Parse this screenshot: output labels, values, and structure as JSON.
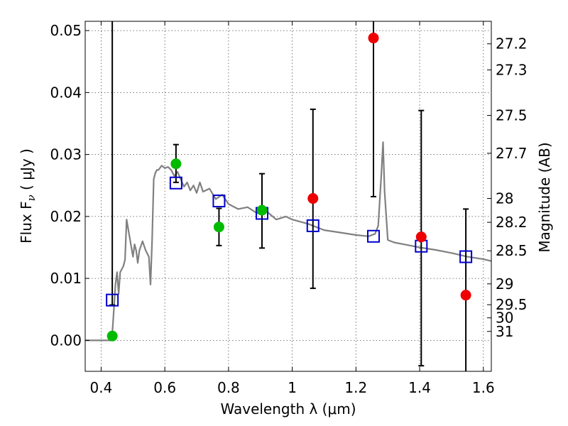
{
  "chart_data": {
    "type": "scatter",
    "xlabel": "Wavelength  λ (μm)",
    "ylabel": "Flux  F",
    "ylabel_sub": "ν",
    "ylabel_unit": " ( μJy )",
    "y2label": "Magnitude (AB)",
    "xlim": [
      0.35,
      1.625
    ],
    "ylim": [
      -0.005,
      0.0515
    ],
    "grid": true,
    "x_ticks": [
      {
        "value": 0.4,
        "label": "0.4"
      },
      {
        "value": 0.6,
        "label": "0.6"
      },
      {
        "value": 0.8,
        "label": "0.8"
      },
      {
        "value": 1.0,
        "label": "1"
      },
      {
        "value": 1.2,
        "label": "1.2"
      },
      {
        "value": 1.4,
        "label": "1.4"
      },
      {
        "value": 1.6,
        "label": "1.6"
      }
    ],
    "y_ticks": [
      {
        "value": 0.0,
        "label": "0.00"
      },
      {
        "value": 0.01,
        "label": "0.01"
      },
      {
        "value": 0.02,
        "label": "0.02"
      },
      {
        "value": 0.03,
        "label": "0.03"
      },
      {
        "value": 0.04,
        "label": "0.04"
      },
      {
        "value": 0.05,
        "label": "0.05"
      }
    ],
    "y2_ticks": [
      {
        "value": 27.2,
        "label": "27.2"
      },
      {
        "value": 27.3,
        "label": "27.3"
      },
      {
        "value": 27.5,
        "label": "27.5"
      },
      {
        "value": 27.7,
        "label": "27.7"
      },
      {
        "value": 28.0,
        "label": "28"
      },
      {
        "value": 28.2,
        "label": "28.2"
      },
      {
        "value": 28.5,
        "label": "28.5"
      },
      {
        "value": 29.0,
        "label": "29"
      },
      {
        "value": 29.5,
        "label": "29.5"
      },
      {
        "value": 30.0,
        "label": "30"
      },
      {
        "value": 31.0,
        "label": "31"
      }
    ],
    "model_sed": {
      "color": "#808080",
      "x": [
        0.35,
        0.4,
        0.42,
        0.43,
        0.435,
        0.44,
        0.445,
        0.45,
        0.455,
        0.46,
        0.465,
        0.47,
        0.475,
        0.48,
        0.49,
        0.5,
        0.505,
        0.51,
        0.515,
        0.52,
        0.53,
        0.54,
        0.55,
        0.555,
        0.56,
        0.565,
        0.57,
        0.575,
        0.58,
        0.59,
        0.6,
        0.61,
        0.62,
        0.63,
        0.64,
        0.65,
        0.66,
        0.67,
        0.68,
        0.69,
        0.7,
        0.71,
        0.72,
        0.74,
        0.76,
        0.78,
        0.8,
        0.83,
        0.86,
        0.89,
        0.92,
        0.95,
        0.98,
        1.0,
        1.05,
        1.1,
        1.15,
        1.2,
        1.24,
        1.26,
        1.27,
        1.28,
        1.285,
        1.29,
        1.3,
        1.32,
        1.35,
        1.4,
        1.45,
        1.5,
        1.55,
        1.6,
        1.625
      ],
      "y": [
        0.0,
        0.0,
        0.0,
        0.0,
        0.001,
        0.005,
        0.009,
        0.011,
        0.0075,
        0.011,
        0.0115,
        0.012,
        0.013,
        0.0195,
        0.0165,
        0.0135,
        0.0155,
        0.0145,
        0.0125,
        0.0145,
        0.016,
        0.0145,
        0.0135,
        0.009,
        0.016,
        0.026,
        0.027,
        0.0275,
        0.0275,
        0.0282,
        0.0278,
        0.028,
        0.0275,
        0.0265,
        0.0272,
        0.026,
        0.0248,
        0.0255,
        0.0242,
        0.025,
        0.0238,
        0.0255,
        0.024,
        0.0245,
        0.0228,
        0.0235,
        0.022,
        0.0212,
        0.0215,
        0.0205,
        0.0208,
        0.0195,
        0.02,
        0.0195,
        0.0188,
        0.0178,
        0.0174,
        0.017,
        0.0168,
        0.0172,
        0.0185,
        0.027,
        0.032,
        0.024,
        0.0162,
        0.0158,
        0.0155,
        0.015,
        0.0146,
        0.0141,
        0.0135,
        0.0131,
        0.0128
      ]
    },
    "model_points": {
      "color": "#0000cc",
      "x": [
        0.435,
        0.635,
        0.77,
        0.905,
        1.065,
        1.255,
        1.405,
        1.545
      ],
      "y": [
        0.0065,
        0.0254,
        0.0225,
        0.0205,
        0.0185,
        0.0168,
        0.0152,
        0.0135
      ]
    },
    "detections": {
      "color": "#00bb00",
      "x": [
        0.435,
        0.635,
        0.77,
        0.905
      ],
      "y": [
        0.0007,
        0.0285,
        0.0183,
        0.021
      ],
      "err_low": [
        0.0057,
        0.0255,
        0.0153,
        0.0149
      ],
      "err_high": [
        null,
        0.0316,
        0.0213,
        0.0269
      ]
    },
    "upper_points": {
      "color": "#ee0000",
      "x": [
        1.065,
        1.255,
        1.405,
        1.545
      ],
      "y": [
        0.0229,
        0.0488,
        0.0167,
        0.0073
      ],
      "err_low": [
        0.0084,
        0.0232,
        -0.0041,
        null
      ],
      "err_high": [
        0.0373,
        null,
        0.0371,
        0.0212
      ]
    }
  }
}
